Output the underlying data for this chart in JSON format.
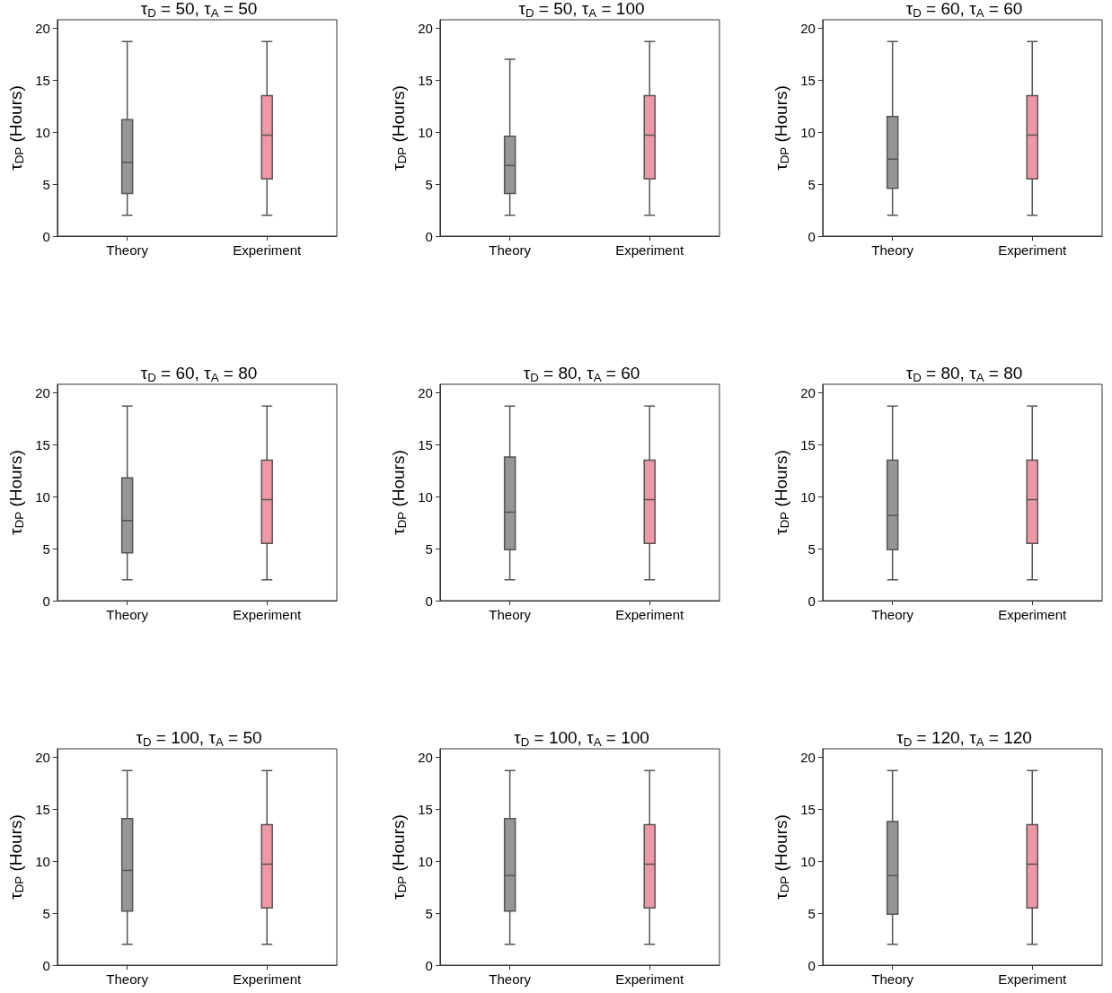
{
  "chart_data": [
    {
      "type": "box",
      "title": "τ$_{D}$ = 50, τ$_{A}$ = 50",
      "ylabel": "τ$_{DP}$ (Hours)",
      "categories": [
        "Theory",
        "Experiment"
      ],
      "colors": [
        "#969696",
        "#f097a2"
      ],
      "ylim": [
        0,
        20.8
      ],
      "yticks": [
        0,
        5,
        10,
        15,
        20
      ],
      "boxes": [
        {
          "low": 2,
          "q1": 4.1,
          "median": 7.1,
          "q3": 11.2,
          "high": 18.7
        },
        {
          "low": 2,
          "q1": 5.5,
          "median": 9.7,
          "q3": 13.5,
          "high": 18.7
        }
      ]
    },
    {
      "type": "box",
      "title": "τ$_{D}$ = 50, τ$_{A}$ = 100",
      "ylabel": "τ$_{DP}$ (Hours)",
      "categories": [
        "Theory",
        "Experiment"
      ],
      "colors": [
        "#969696",
        "#f097a2"
      ],
      "ylim": [
        0,
        20.8
      ],
      "yticks": [
        0,
        5,
        10,
        15,
        20
      ],
      "boxes": [
        {
          "low": 2,
          "q1": 4.1,
          "median": 6.8,
          "q3": 9.6,
          "high": 17
        },
        {
          "low": 2,
          "q1": 5.5,
          "median": 9.7,
          "q3": 13.5,
          "high": 18.7
        }
      ]
    },
    {
      "type": "box",
      "title": "τ$_{D}$ = 60, τ$_{A}$ = 60",
      "ylabel": "τ$_{DP}$ (Hours)",
      "categories": [
        "Theory",
        "Experiment"
      ],
      "colors": [
        "#969696",
        "#f097a2"
      ],
      "ylim": [
        0,
        20.8
      ],
      "yticks": [
        0,
        5,
        10,
        15,
        20
      ],
      "boxes": [
        {
          "low": 2,
          "q1": 4.6,
          "median": 7.4,
          "q3": 11.5,
          "high": 18.7
        },
        {
          "low": 2,
          "q1": 5.5,
          "median": 9.7,
          "q3": 13.5,
          "high": 18.7
        }
      ]
    },
    {
      "type": "box",
      "title": "τ$_{D}$ = 60, τ$_{A}$ = 80",
      "ylabel": "τ$_{DP}$ (Hours)",
      "categories": [
        "Theory",
        "Experiment"
      ],
      "colors": [
        "#969696",
        "#f097a2"
      ],
      "ylim": [
        0,
        20.8
      ],
      "yticks": [
        0,
        5,
        10,
        15,
        20
      ],
      "boxes": [
        {
          "low": 2,
          "q1": 4.6,
          "median": 7.7,
          "q3": 11.8,
          "high": 18.7
        },
        {
          "low": 2,
          "q1": 5.5,
          "median": 9.7,
          "q3": 13.5,
          "high": 18.7
        }
      ]
    },
    {
      "type": "box",
      "title": "τ$_{D}$ = 80, τ$_{A}$ = 60",
      "ylabel": "τ$_{DP}$ (Hours)",
      "categories": [
        "Theory",
        "Experiment"
      ],
      "colors": [
        "#969696",
        "#f097a2"
      ],
      "ylim": [
        0,
        20.8
      ],
      "yticks": [
        0,
        5,
        10,
        15,
        20
      ],
      "boxes": [
        {
          "low": 2,
          "q1": 4.9,
          "median": 8.5,
          "q3": 13.8,
          "high": 18.7
        },
        {
          "low": 2,
          "q1": 5.5,
          "median": 9.7,
          "q3": 13.5,
          "high": 18.7
        }
      ]
    },
    {
      "type": "box",
      "title": "τ$_{D}$ = 80, τ$_{A}$ = 80",
      "ylabel": "τ$_{DP}$ (Hours)",
      "categories": [
        "Theory",
        "Experiment"
      ],
      "colors": [
        "#969696",
        "#f097a2"
      ],
      "ylim": [
        0,
        20.8
      ],
      "yticks": [
        0,
        5,
        10,
        15,
        20
      ],
      "boxes": [
        {
          "low": 2,
          "q1": 4.9,
          "median": 8.2,
          "q3": 13.5,
          "high": 18.7
        },
        {
          "low": 2,
          "q1": 5.5,
          "median": 9.7,
          "q3": 13.5,
          "high": 18.7
        }
      ]
    },
    {
      "type": "box",
      "title": "τ$_{D}$ = 100, τ$_{A}$ = 50",
      "ylabel": "τ$_{DP}$ (Hours)",
      "categories": [
        "Theory",
        "Experiment"
      ],
      "colors": [
        "#969696",
        "#f097a2"
      ],
      "ylim": [
        0,
        20.8
      ],
      "yticks": [
        0,
        5,
        10,
        15,
        20
      ],
      "boxes": [
        {
          "low": 2,
          "q1": 5.2,
          "median": 9.1,
          "q3": 14.1,
          "high": 18.7
        },
        {
          "low": 2,
          "q1": 5.5,
          "median": 9.7,
          "q3": 13.5,
          "high": 18.7
        }
      ]
    },
    {
      "type": "box",
      "title": "τ$_{D}$ = 100, τ$_{A}$ = 100",
      "ylabel": "τ$_{DP}$ (Hours)",
      "categories": [
        "Theory",
        "Experiment"
      ],
      "colors": [
        "#969696",
        "#f097a2"
      ],
      "ylim": [
        0,
        20.8
      ],
      "yticks": [
        0,
        5,
        10,
        15,
        20
      ],
      "boxes": [
        {
          "low": 2,
          "q1": 5.2,
          "median": 8.6,
          "q3": 14.1,
          "high": 18.7
        },
        {
          "low": 2,
          "q1": 5.5,
          "median": 9.7,
          "q3": 13.5,
          "high": 18.7
        }
      ]
    },
    {
      "type": "box",
      "title": "τ$_{D}$ = 120, τ$_{A}$ = 120",
      "ylabel": "τ$_{DP}$ (Hours)",
      "categories": [
        "Theory",
        "Experiment"
      ],
      "colors": [
        "#969696",
        "#f097a2"
      ],
      "ylim": [
        0,
        20.8
      ],
      "yticks": [
        0,
        5,
        10,
        15,
        20
      ],
      "boxes": [
        {
          "low": 2,
          "q1": 4.9,
          "median": 8.6,
          "q3": 13.8,
          "high": 18.7
        },
        {
          "low": 2,
          "q1": 5.5,
          "median": 9.7,
          "q3": 13.5,
          "high": 18.7
        }
      ]
    }
  ]
}
